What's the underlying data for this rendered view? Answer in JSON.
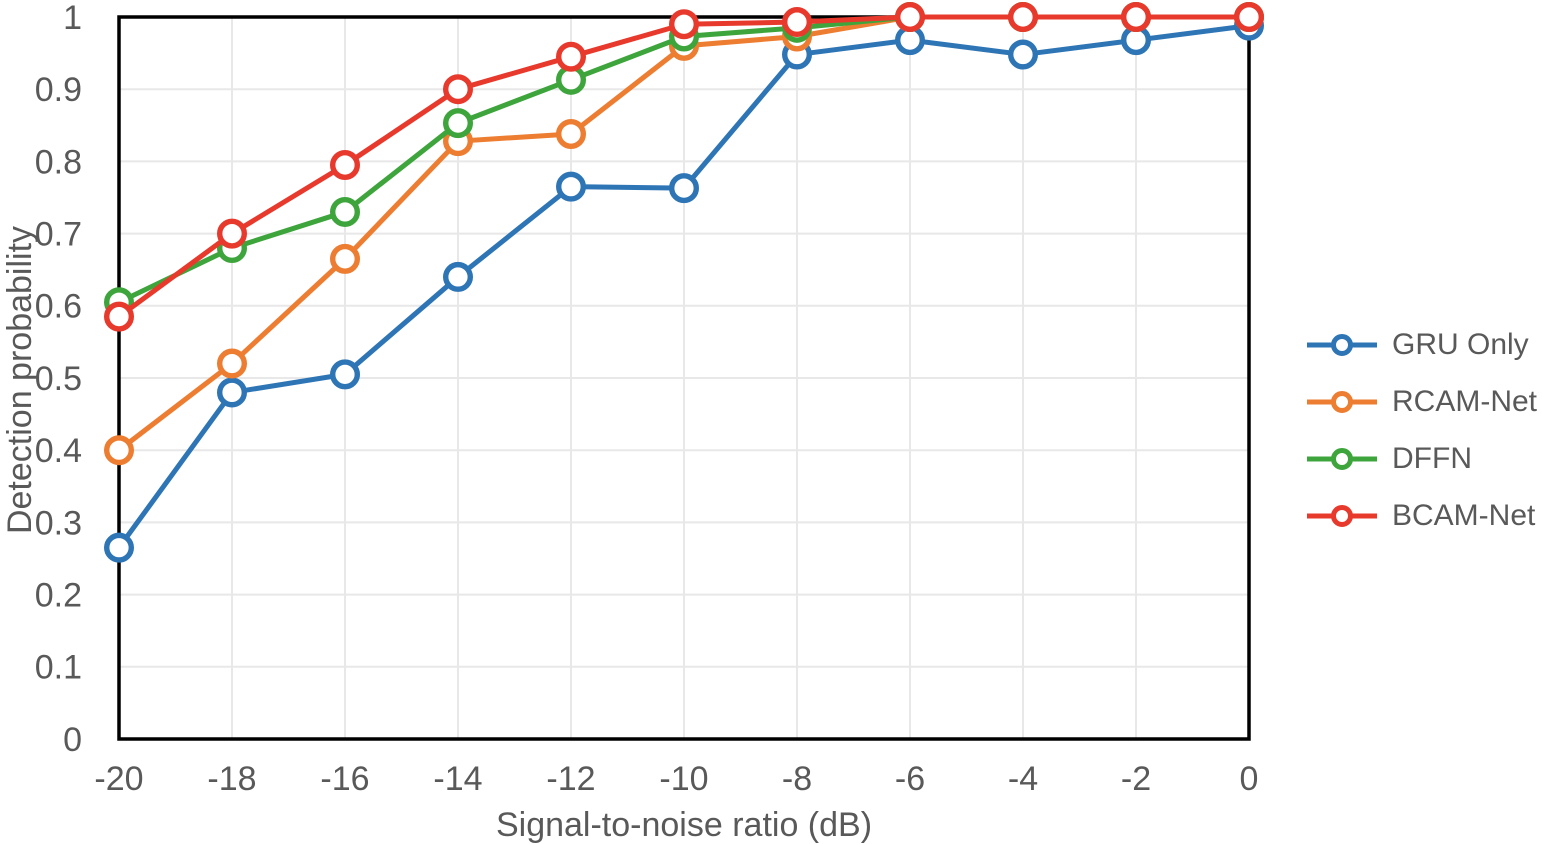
{
  "figure": {
    "background": "#FFFFFF"
  },
  "chart_data": {
    "type": "line",
    "title": "",
    "xlabel": "Signal-to-noise ratio (dB)",
    "ylabel": "Detection probability",
    "x": [
      -20,
      -18,
      -16,
      -14,
      -12,
      -10,
      -8,
      -6,
      -4,
      -2,
      0
    ],
    "xlim": [
      -20,
      0
    ],
    "ylim": [
      0,
      1
    ],
    "x_tick_labels": [
      "-20",
      "-18",
      "-16",
      "-14",
      "-12",
      "-10",
      "-8",
      "-6",
      "-4",
      "-2",
      "0"
    ],
    "y_tick_values": [
      0,
      0.1,
      0.2,
      0.3,
      0.4,
      0.5,
      0.6,
      0.7,
      0.8,
      0.9,
      1
    ],
    "y_tick_labels": [
      "0",
      "0.1",
      "0.2",
      "0.3",
      "0.4",
      "0.5",
      "0.6",
      "0.7",
      "0.8",
      "0.9",
      "1"
    ],
    "grid": true,
    "legend_position": "right-middle",
    "series": [
      {
        "name": "GRU Only",
        "color": "#2E75B6",
        "marker": "open-circle",
        "values": [
          0.265,
          0.48,
          0.505,
          0.64,
          0.765,
          0.763,
          0.948,
          0.968,
          0.948,
          0.968,
          0.988
        ]
      },
      {
        "name": "RCAM-Net",
        "color": "#ED7D31",
        "marker": "open-circle",
        "values": [
          0.4,
          0.52,
          0.665,
          0.828,
          0.838,
          0.96,
          0.973,
          1,
          1,
          1,
          1
        ]
      },
      {
        "name": "DFFN",
        "color": "#3EA53C",
        "marker": "open-circle",
        "values": [
          0.605,
          0.68,
          0.73,
          0.853,
          0.913,
          0.973,
          0.985,
          1,
          1,
          1,
          1
        ]
      },
      {
        "name": "BCAM-Net",
        "color": "#E8392D",
        "marker": "open-circle",
        "values": [
          0.585,
          0.7,
          0.795,
          0.9,
          0.945,
          0.99,
          0.993,
          1,
          1,
          1,
          1
        ]
      }
    ],
    "styles": {
      "grid_color": "#E8E8E8",
      "axis_color": "#000000",
      "tick_label_color": "#595959",
      "axis_title_color": "#595959",
      "legend_text_color": "#595959"
    }
  }
}
